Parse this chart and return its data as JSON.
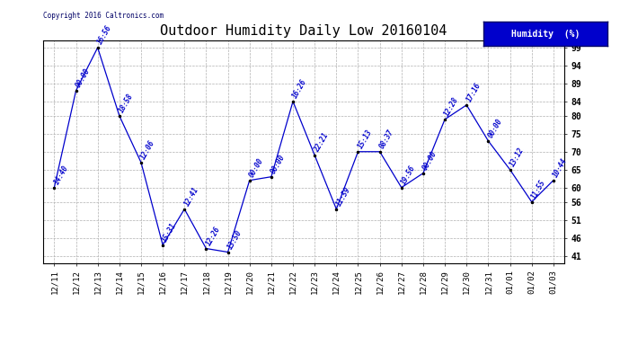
{
  "title": "Outdoor Humidity Daily Low 20160104",
  "copyright": "Copyright 2016 Caltronics.com",
  "legend_label": "Humidity  (%)",
  "x_labels": [
    "12/11",
    "12/12",
    "12/13",
    "12/14",
    "12/15",
    "12/16",
    "12/17",
    "12/18",
    "12/19",
    "12/20",
    "12/21",
    "12/22",
    "12/23",
    "12/24",
    "12/25",
    "12/26",
    "12/27",
    "12/28",
    "12/29",
    "12/30",
    "12/31",
    "01/01",
    "01/02",
    "01/03"
  ],
  "y_values": [
    60,
    87,
    99,
    80,
    67,
    44,
    54,
    43,
    42,
    62,
    63,
    84,
    69,
    54,
    70,
    70,
    60,
    64,
    79,
    83,
    73,
    65,
    56,
    62
  ],
  "point_labels": [
    "14:40",
    "00:00",
    "16:56",
    "18:58",
    "12:06",
    "15:31",
    "12:41",
    "12:26",
    "13:50",
    "00:00",
    "00:00",
    "16:26",
    "22:21",
    "11:59",
    "15:13",
    "08:37",
    "19:56",
    "00:00",
    "12:28",
    "17:16",
    "00:00",
    "13:12",
    "11:55",
    "10:44"
  ],
  "line_color": "#0000cc",
  "marker_color": "#000000",
  "background_color": "#ffffff",
  "grid_color": "#b0b0b0",
  "title_fontsize": 11,
  "y_ticks": [
    41,
    46,
    51,
    56,
    60,
    65,
    70,
    75,
    80,
    84,
    89,
    94,
    99
  ],
  "y_min": 39,
  "y_max": 101
}
